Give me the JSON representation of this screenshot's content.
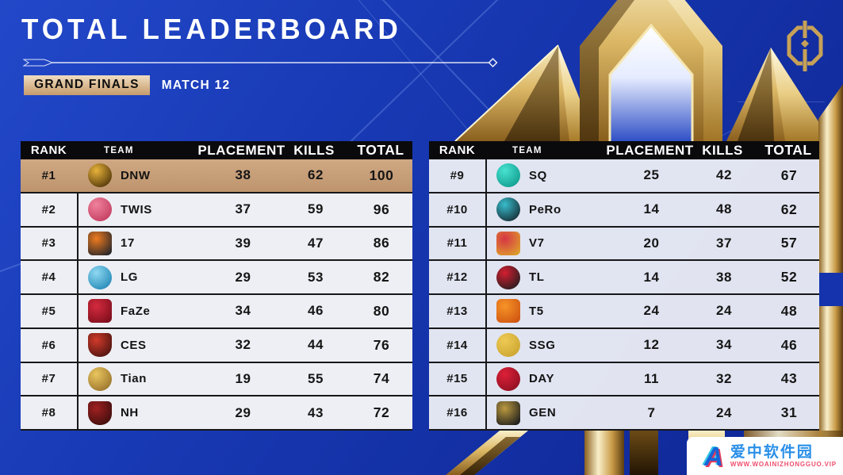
{
  "header": {
    "title": "TOTAL LEADERBOARD",
    "stage_badge": "GRAND FINALS",
    "match_label": "MATCH 12",
    "event_logo": "PGC"
  },
  "table": {
    "columns": [
      "RANK",
      "TEAM",
      "PLACEMENT",
      "KILLS",
      "TOTAL"
    ]
  },
  "left_table": {
    "rows": [
      {
        "rank": "#1",
        "team": "DNW",
        "placement": 38,
        "kills": 62,
        "total": 100,
        "logo": "dnw-logo",
        "logo_colors": [
          "#e8b33a",
          "#4a3008"
        ],
        "logo_shape": "circle",
        "highlight": true
      },
      {
        "rank": "#2",
        "team": "TWIS",
        "placement": 37,
        "kills": 59,
        "total": 96,
        "logo": "twis-logo",
        "logo_colors": [
          "#f0819c",
          "#c13a5e"
        ],
        "logo_shape": "circle",
        "highlight": false
      },
      {
        "rank": "#3",
        "team": "17",
        "placement": 39,
        "kills": 47,
        "total": 86,
        "logo": "17gaming-logo",
        "logo_colors": [
          "#ef7b1e",
          "#26262a"
        ],
        "logo_shape": "square",
        "highlight": false
      },
      {
        "rank": "#4",
        "team": "LG",
        "placement": 29,
        "kills": 53,
        "total": 82,
        "logo": "lg-logo",
        "logo_colors": [
          "#8fd8f2",
          "#1f86b4"
        ],
        "logo_shape": "circle",
        "highlight": false
      },
      {
        "rank": "#5",
        "team": "FaZe",
        "placement": 34,
        "kills": 46,
        "total": 80,
        "logo": "faze-logo",
        "logo_colors": [
          "#d42a3e",
          "#7e0e1c"
        ],
        "logo_shape": "square",
        "highlight": false
      },
      {
        "rank": "#6",
        "team": "CES",
        "placement": 32,
        "kills": 44,
        "total": 76,
        "logo": "ces-logo",
        "logo_colors": [
          "#d03a2a",
          "#47120f"
        ],
        "logo_shape": "shield",
        "highlight": false
      },
      {
        "rank": "#7",
        "team": "Tian",
        "placement": 19,
        "kills": 55,
        "total": 74,
        "logo": "tianba-logo",
        "logo_colors": [
          "#eac55e",
          "#96702a"
        ],
        "logo_shape": "circle",
        "highlight": false
      },
      {
        "rank": "#8",
        "team": "NH",
        "placement": 29,
        "kills": 43,
        "total": 72,
        "logo": "nh-logo",
        "logo_colors": [
          "#a02020",
          "#3a0d0d"
        ],
        "logo_shape": "shield",
        "highlight": false
      }
    ]
  },
  "right_table": {
    "rows": [
      {
        "rank": "#9",
        "team": "SQ",
        "placement": 25,
        "kills": 42,
        "total": 67,
        "logo": "sq-logo",
        "logo_colors": [
          "#49e2d1",
          "#0d9a8b"
        ],
        "logo_shape": "circle",
        "highlight": false
      },
      {
        "rank": "#10",
        "team": "PeRo",
        "placement": 14,
        "kills": 48,
        "total": 62,
        "logo": "pero-logo",
        "logo_colors": [
          "#38bccb",
          "#142730"
        ],
        "logo_shape": "circle",
        "highlight": false
      },
      {
        "rank": "#11",
        "team": "V7",
        "placement": 20,
        "kills": 37,
        "total": 57,
        "logo": "v7-logo",
        "logo_colors": [
          "#d63545",
          "#de9f2c"
        ],
        "logo_shape": "square",
        "highlight": false
      },
      {
        "rank": "#12",
        "team": "TL",
        "placement": 14,
        "kills": 38,
        "total": 52,
        "logo": "tyloo-logo",
        "logo_colors": [
          "#d41f30",
          "#1d1d1f"
        ],
        "logo_shape": "circle",
        "highlight": false
      },
      {
        "rank": "#13",
        "team": "T5",
        "placement": 24,
        "kills": 24,
        "total": 48,
        "logo": "t5-logo",
        "logo_colors": [
          "#f79428",
          "#cf5510"
        ],
        "logo_shape": "square",
        "highlight": false
      },
      {
        "rank": "#14",
        "team": "SSG",
        "placement": 12,
        "kills": 34,
        "total": 46,
        "logo": "ssg-logo",
        "logo_colors": [
          "#eecb55",
          "#caa32e"
        ],
        "logo_shape": "circle",
        "highlight": false
      },
      {
        "rank": "#15",
        "team": "DAY",
        "placement": 11,
        "kills": 32,
        "total": 43,
        "logo": "day-logo",
        "logo_colors": [
          "#dc2038",
          "#8c0f20"
        ],
        "logo_shape": "circle",
        "highlight": false
      },
      {
        "rank": "#16",
        "team": "GEN",
        "placement": 7,
        "kills": 24,
        "total": 31,
        "logo": "geng-logo",
        "logo_colors": [
          "#bb993f",
          "#1e1e1e"
        ],
        "logo_shape": "square",
        "highlight": false
      }
    ]
  },
  "watermark": {
    "site_name": "爱中软件园",
    "site_url": "WWW.WOAINIZHONGGUO.VIP"
  },
  "colors": {
    "background_blue": "#1839b4",
    "header_black": "#0a0a0d",
    "row_light": "#edeff4",
    "highlight_tan": "#c9a37d",
    "gold": "#d4af5e",
    "text_dark": "#161616"
  }
}
